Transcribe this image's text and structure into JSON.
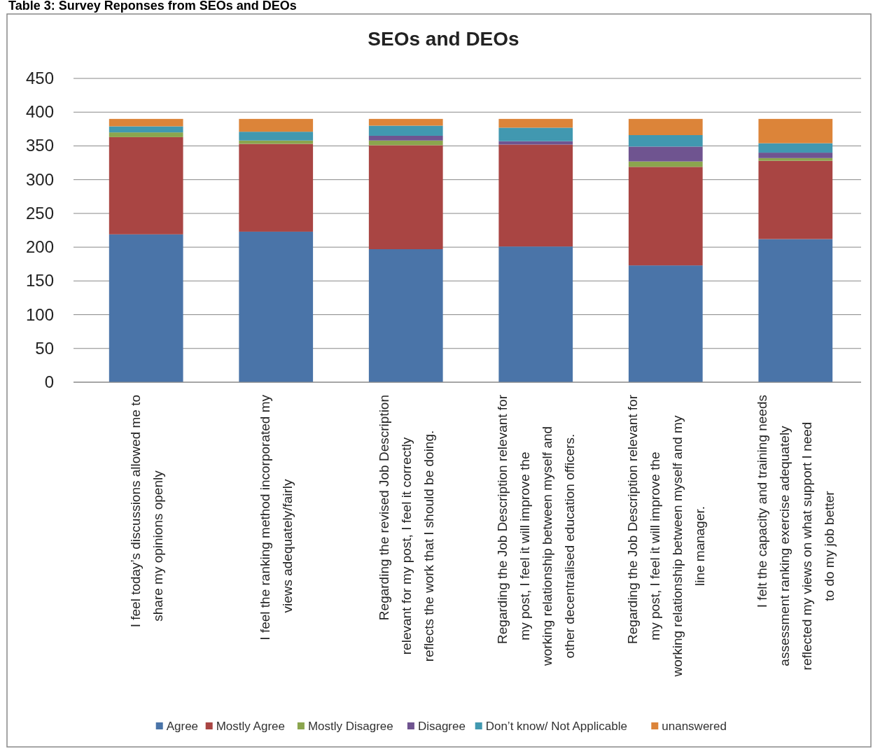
{
  "chart_data": {
    "type": "bar",
    "title": "SEOs and DEOs",
    "annotations": [
      "Table 3: Survey Reponses from SEOs and DEOs"
    ],
    "categories": [
      "I feel today’s discussions allowed me to share my opinions openly",
      "I feel the ranking method incorporated my views adequately/fairly",
      "Regarding the revised Job Description relevant for my post, I feel it correctly reflects the work that I should be doing.",
      "Regarding the Job Description relevant for my post, I feel it will improve the working relationship between myself and other decentralised education officers.",
      "Regarding the Job Description relevant for my post, I feel it will improve the working relationship between myself and my line manager.",
      "I felt the capacity and training needs assessment ranking exercise adequately reflected my views on what support I need to do my job better"
    ],
    "stacked": true,
    "ylim": [
      0,
      450
    ],
    "yticks": [
      0,
      50,
      100,
      150,
      200,
      250,
      300,
      350,
      400,
      450
    ],
    "grid": "y",
    "legend": "bottom",
    "series": [
      {
        "name": "Agree",
        "color": "#4a74a8",
        "values": [
          219,
          223,
          197,
          201,
          173,
          212
        ]
      },
      {
        "name": "Mostly Agree",
        "color": "#a94543",
        "values": [
          144,
          130,
          154,
          151,
          146,
          116
        ]
      },
      {
        "name": "Mostly Disagree",
        "color": "#8ba54e",
        "values": [
          7,
          5,
          7,
          0,
          8,
          4
        ]
      },
      {
        "name": "Disagree",
        "color": "#6f5490",
        "values": [
          0,
          0,
          7,
          5,
          22,
          8
        ]
      },
      {
        "name": "Don’t know/ Not Applicable",
        "color": "#4198b0",
        "values": [
          9,
          13,
          15,
          20,
          17,
          14
        ]
      },
      {
        "name": "unanswered",
        "color": "#dc8439",
        "values": [
          11,
          19,
          10,
          13,
          24,
          36
        ]
      }
    ]
  }
}
